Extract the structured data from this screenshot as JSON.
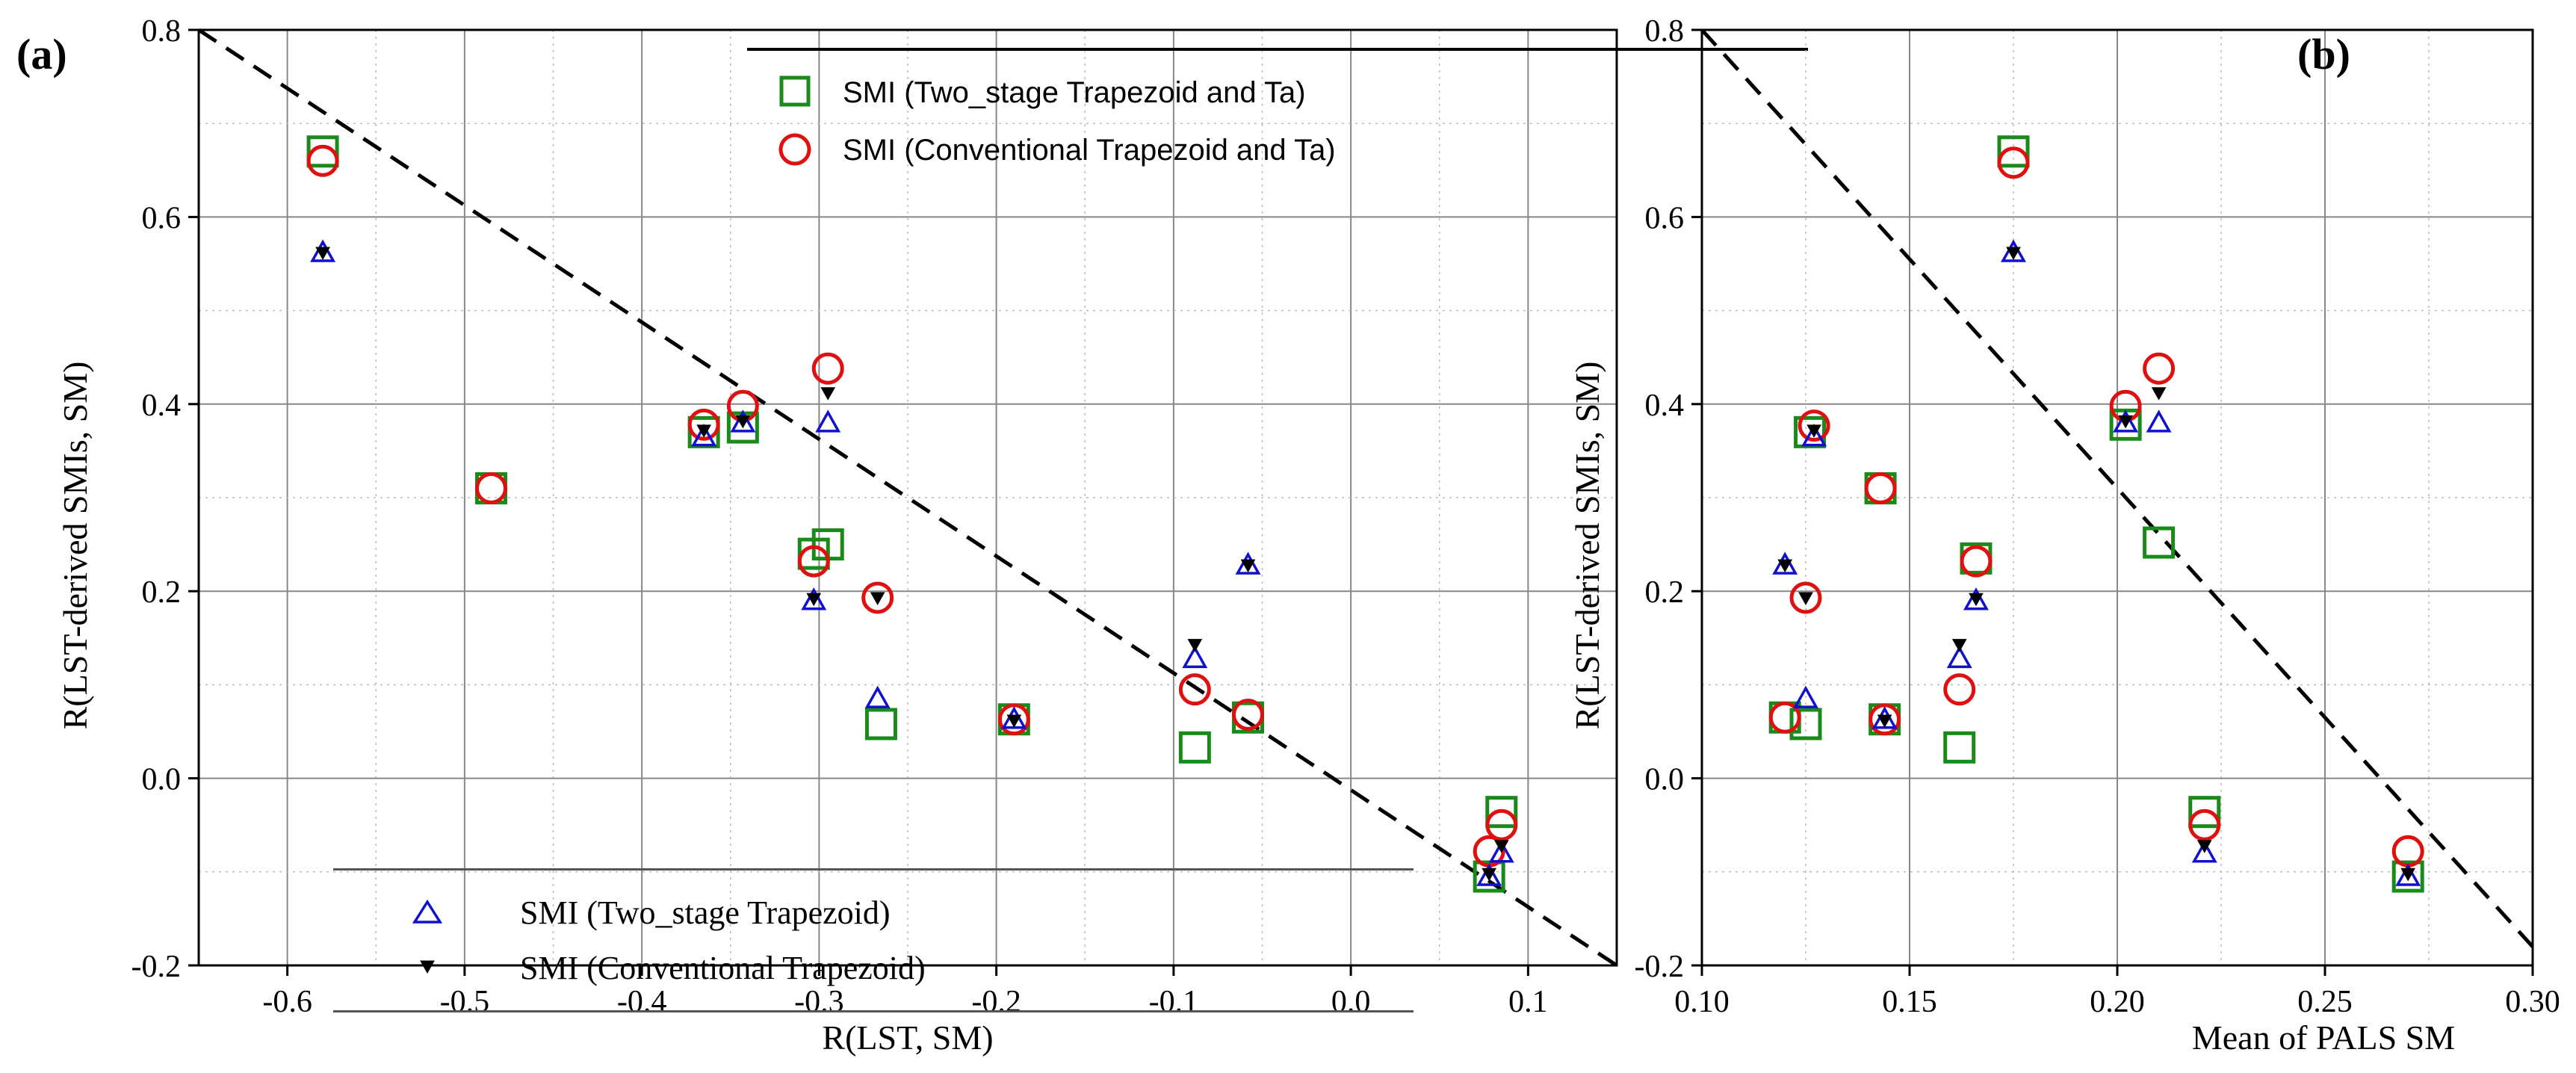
{
  "colors": {
    "two_stage_ta": "#1a8a1a",
    "conventional_ta": "#e01010",
    "two_stage": "#1010d0",
    "conventional": "#000000",
    "grid_major": "#888888",
    "grid_minor": "#bbbbbb"
  },
  "chart_data": [
    {
      "id": "a",
      "type": "scatter",
      "panel_label": "(a)",
      "xlabel": "R(LST, SM)",
      "ylabel": "R(LST-derived SMIs, SM)",
      "xlim": [
        -0.65,
        0.15
      ],
      "ylim": [
        -0.2,
        0.8
      ],
      "xticks": [
        -0.6,
        -0.5,
        -0.4,
        -0.3,
        -0.2,
        -0.1,
        0.0,
        0.1
      ],
      "xtick_labels": [
        "-0.6",
        "-0.5",
        "-0.4",
        "-0.3",
        "-0.2",
        "-0.1",
        "0.0",
        "0.1"
      ],
      "yticks": [
        -0.2,
        0.0,
        0.2,
        0.4,
        0.6,
        0.8
      ],
      "ytick_labels": [
        "-0.2",
        "0.0",
        "0.2",
        "0.4",
        "0.6",
        "0.8"
      ],
      "reference_line": {
        "style": "dashed",
        "points": [
          [
            -0.65,
            0.8
          ],
          [
            0.15,
            -0.2
          ]
        ]
      },
      "series": [
        {
          "name": "SMI (Two_stage Trapezoid and Ta)",
          "marker": "square",
          "color_key": "two_stage_ta",
          "x": [
            -0.58,
            -0.485,
            -0.365,
            -0.343,
            -0.303,
            -0.295,
            -0.265,
            -0.19,
            -0.088,
            -0.058,
            0.078,
            0.085
          ],
          "y": [
            0.67,
            0.31,
            0.37,
            0.375,
            0.24,
            0.25,
            0.058,
            0.063,
            0.033,
            0.065,
            -0.105,
            -0.036
          ]
        },
        {
          "name": "SMI (Conventional Trapezoid and Ta)",
          "marker": "circle",
          "color_key": "conventional_ta",
          "x": [
            -0.58,
            -0.485,
            -0.365,
            -0.343,
            -0.303,
            -0.295,
            -0.267,
            -0.19,
            -0.088,
            -0.058,
            0.078,
            0.085
          ],
          "y": [
            0.66,
            0.31,
            0.378,
            0.398,
            0.232,
            0.438,
            0.193,
            0.063,
            0.095,
            0.068,
            -0.078,
            -0.05
          ]
        },
        {
          "name": "SMI (Two_stage Trapezoid)",
          "marker": "triangle",
          "color_key": "two_stage",
          "x": [
            -0.58,
            -0.365,
            -0.343,
            -0.303,
            -0.295,
            -0.267,
            -0.19,
            -0.088,
            -0.058,
            0.078,
            0.085
          ],
          "y": [
            0.562,
            0.365,
            0.38,
            0.19,
            0.38,
            0.085,
            0.063,
            0.128,
            0.228,
            -0.105,
            -0.08
          ]
        },
        {
          "name": "SMI (Conventional Trapezoid)",
          "marker": "down-triangle",
          "color_key": "conventional",
          "x": [
            -0.58,
            -0.365,
            -0.343,
            -0.303,
            -0.295,
            -0.267,
            -0.19,
            -0.088,
            -0.058,
            0.078,
            0.085
          ],
          "y": [
            0.562,
            0.372,
            0.382,
            0.192,
            0.412,
            0.193,
            0.062,
            0.143,
            0.228,
            -0.102,
            -0.072
          ]
        }
      ],
      "legend_upper": {
        "placement": "top-center",
        "entries": [
          "SMI (Two_stage Trapezoid and Ta)",
          "SMI (Conventional Trapezoid and Ta)"
        ]
      },
      "legend_lower": {
        "placement": "bottom-left",
        "entries": [
          "SMI (Two_stage Trapezoid)",
          "SMI (Conventional Trapezoid)"
        ]
      }
    },
    {
      "id": "b",
      "type": "scatter",
      "panel_label": "(b)",
      "xlabel": "Mean of PALS SM",
      "ylabel": "R(LST-derived SMIs, SM)",
      "xlim": [
        0.1,
        0.3
      ],
      "ylim": [
        -0.2,
        0.8
      ],
      "xticks": [
        0.1,
        0.15,
        0.2,
        0.25,
        0.3
      ],
      "xtick_labels": [
        "0.10",
        "0.15",
        "0.20",
        "0.25",
        "0.30"
      ],
      "yticks": [
        -0.2,
        0.0,
        0.2,
        0.4,
        0.6,
        0.8
      ],
      "ytick_labels": [
        "-0.2",
        "0.0",
        "0.2",
        "0.4",
        "0.6",
        "0.8"
      ],
      "reference_line": {
        "style": "dashed",
        "points": [
          [
            0.1,
            0.8
          ],
          [
            0.3,
            -0.18
          ]
        ]
      },
      "series": [
        {
          "name": "SMI (Two_stage Trapezoid and Ta)",
          "marker": "square",
          "color_key": "two_stage_ta",
          "x": [
            0.175,
            0.126,
            0.143,
            0.202,
            0.166,
            0.21,
            0.125,
            0.12,
            0.144,
            0.162,
            0.221,
            0.27
          ],
          "y": [
            0.67,
            0.37,
            0.31,
            0.378,
            0.235,
            0.252,
            0.058,
            0.065,
            0.063,
            0.033,
            -0.036,
            -0.105
          ]
        },
        {
          "name": "SMI (Conventional Trapezoid and Ta)",
          "marker": "circle",
          "color_key": "conventional_ta",
          "x": [
            0.175,
            0.127,
            0.143,
            0.202,
            0.166,
            0.21,
            0.125,
            0.12,
            0.144,
            0.162,
            0.221,
            0.27
          ],
          "y": [
            0.658,
            0.377,
            0.31,
            0.398,
            0.232,
            0.438,
            0.193,
            0.065,
            0.063,
            0.095,
            -0.05,
            -0.078
          ]
        },
        {
          "name": "SMI (Two_stage Trapezoid)",
          "marker": "triangle",
          "color_key": "two_stage",
          "x": [
            0.175,
            0.127,
            0.202,
            0.21,
            0.166,
            0.12,
            0.125,
            0.144,
            0.162,
            0.221,
            0.27
          ],
          "y": [
            0.562,
            0.365,
            0.38,
            0.38,
            0.19,
            0.228,
            0.085,
            0.063,
            0.128,
            -0.08,
            -0.105
          ]
        },
        {
          "name": "SMI (Conventional Trapezoid)",
          "marker": "down-triangle",
          "color_key": "conventional",
          "x": [
            0.175,
            0.127,
            0.202,
            0.21,
            0.166,
            0.12,
            0.125,
            0.144,
            0.162,
            0.221,
            0.27
          ],
          "y": [
            0.562,
            0.372,
            0.382,
            0.412,
            0.192,
            0.228,
            0.193,
            0.062,
            0.143,
            -0.072,
            -0.102
          ]
        }
      ]
    }
  ]
}
